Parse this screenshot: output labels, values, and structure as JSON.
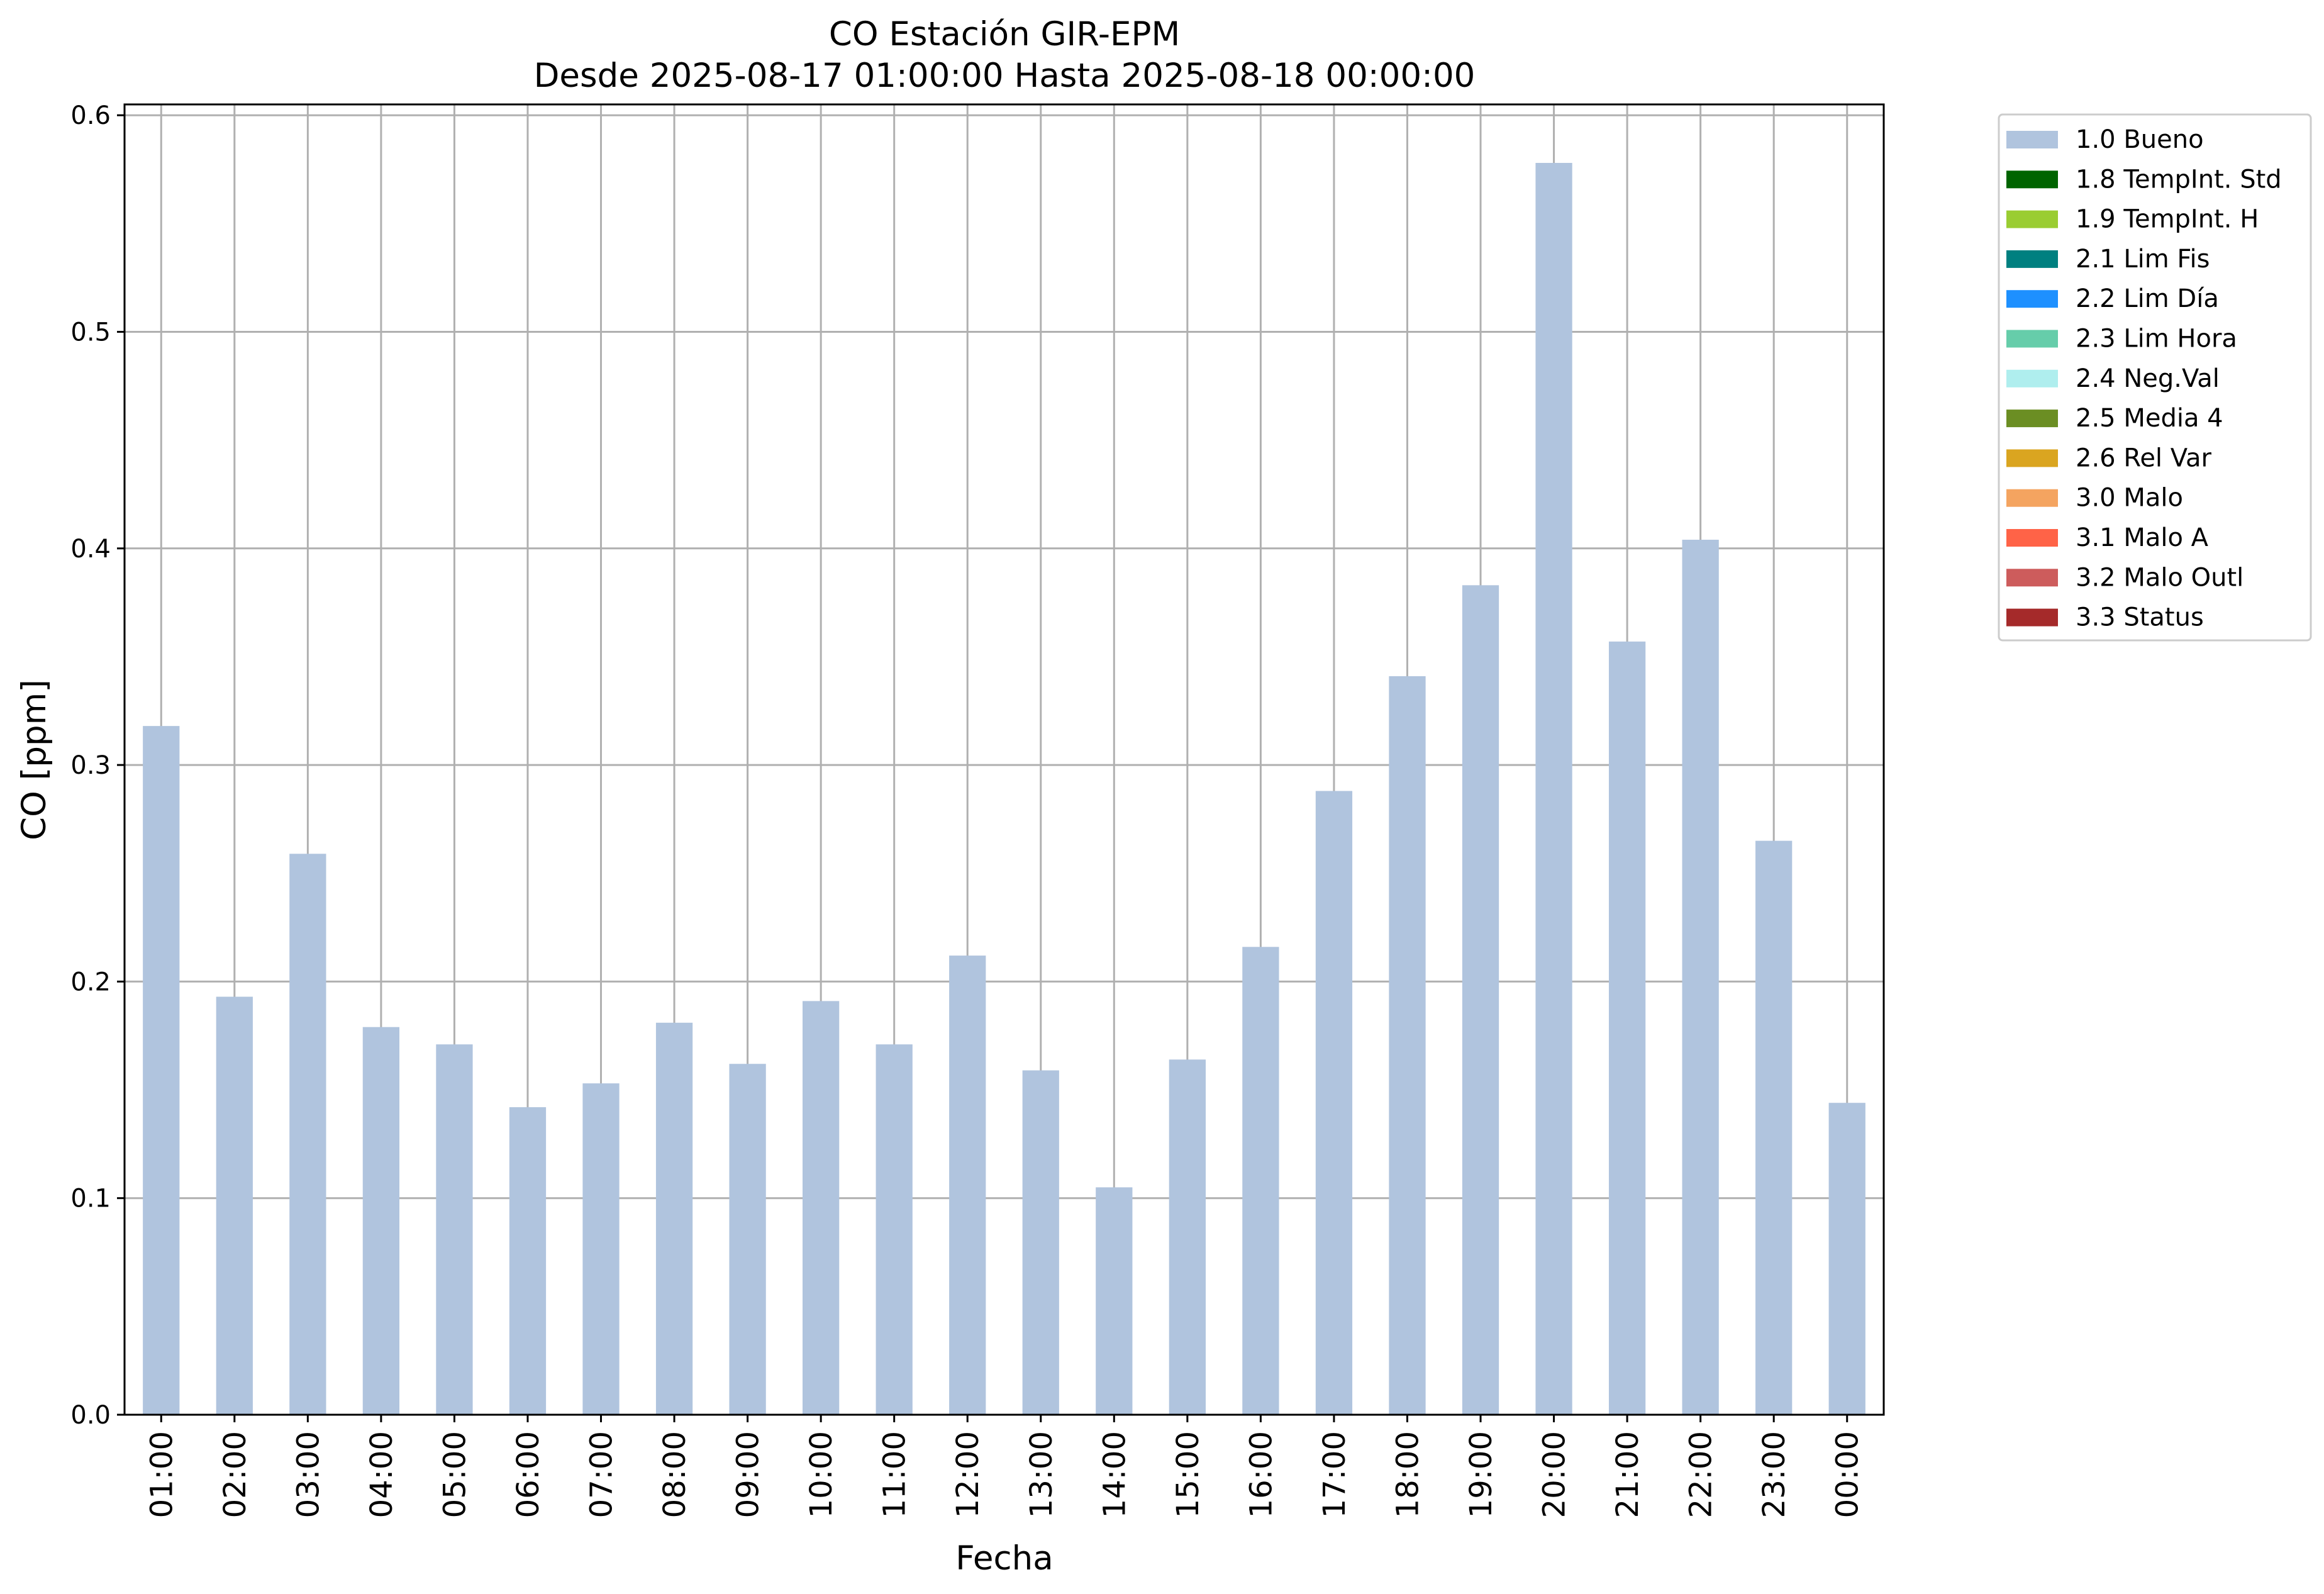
{
  "chart_data": {
    "type": "bar",
    "title": "CO Estación GIR-EPM",
    "subtitle": "Desde 2025-08-17 01:00:00 Hasta 2025-08-18 00:00:00",
    "xlabel": "Fecha",
    "ylabel": "CO [ppm]",
    "ylim": [
      0,
      0.605
    ],
    "yticks": [
      "0.0",
      "0.1",
      "0.2",
      "0.3",
      "0.4",
      "0.5",
      "0.6"
    ],
    "grid": true,
    "legend_position": "outside-top-right",
    "categories": [
      "01:00",
      "02:00",
      "03:00",
      "04:00",
      "05:00",
      "06:00",
      "07:00",
      "08:00",
      "09:00",
      "10:00",
      "11:00",
      "12:00",
      "13:00",
      "14:00",
      "15:00",
      "16:00",
      "17:00",
      "18:00",
      "19:00",
      "20:00",
      "21:00",
      "22:00",
      "23:00",
      "00:00"
    ],
    "series": [
      {
        "name": "1.0 Bueno",
        "color": "#b0c4de",
        "values": [
          0.318,
          0.193,
          0.259,
          0.179,
          0.171,
          0.142,
          0.153,
          0.181,
          0.162,
          0.191,
          0.171,
          0.212,
          0.159,
          0.105,
          0.164,
          0.216,
          0.288,
          0.341,
          0.383,
          0.578,
          0.357,
          0.404,
          0.265,
          0.144
        ]
      }
    ],
    "legend": [
      {
        "label": "1.0 Bueno",
        "color": "#b0c4de"
      },
      {
        "label": "1.8 TempInt. Std",
        "color": "#006400"
      },
      {
        "label": "1.9 TempInt. H",
        "color": "#9acd32"
      },
      {
        "label": "2.1 Lim Fis",
        "color": "#008080"
      },
      {
        "label": "2.2 Lim Día",
        "color": "#1e90ff"
      },
      {
        "label": "2.3 Lim Hora",
        "color": "#66cdaa"
      },
      {
        "label": "2.4 Neg.Val",
        "color": "#afeeee"
      },
      {
        "label": "2.5 Media 4",
        "color": "#6b8e23"
      },
      {
        "label": "2.6 Rel Var",
        "color": "#daa520"
      },
      {
        "label": "3.0 Malo",
        "color": "#f4a460"
      },
      {
        "label": "3.1 Malo A",
        "color": "#ff6347"
      },
      {
        "label": "3.2 Malo Outl",
        "color": "#cd5c5c"
      },
      {
        "label": "3.3 Status",
        "color": "#a52a2a"
      }
    ]
  }
}
